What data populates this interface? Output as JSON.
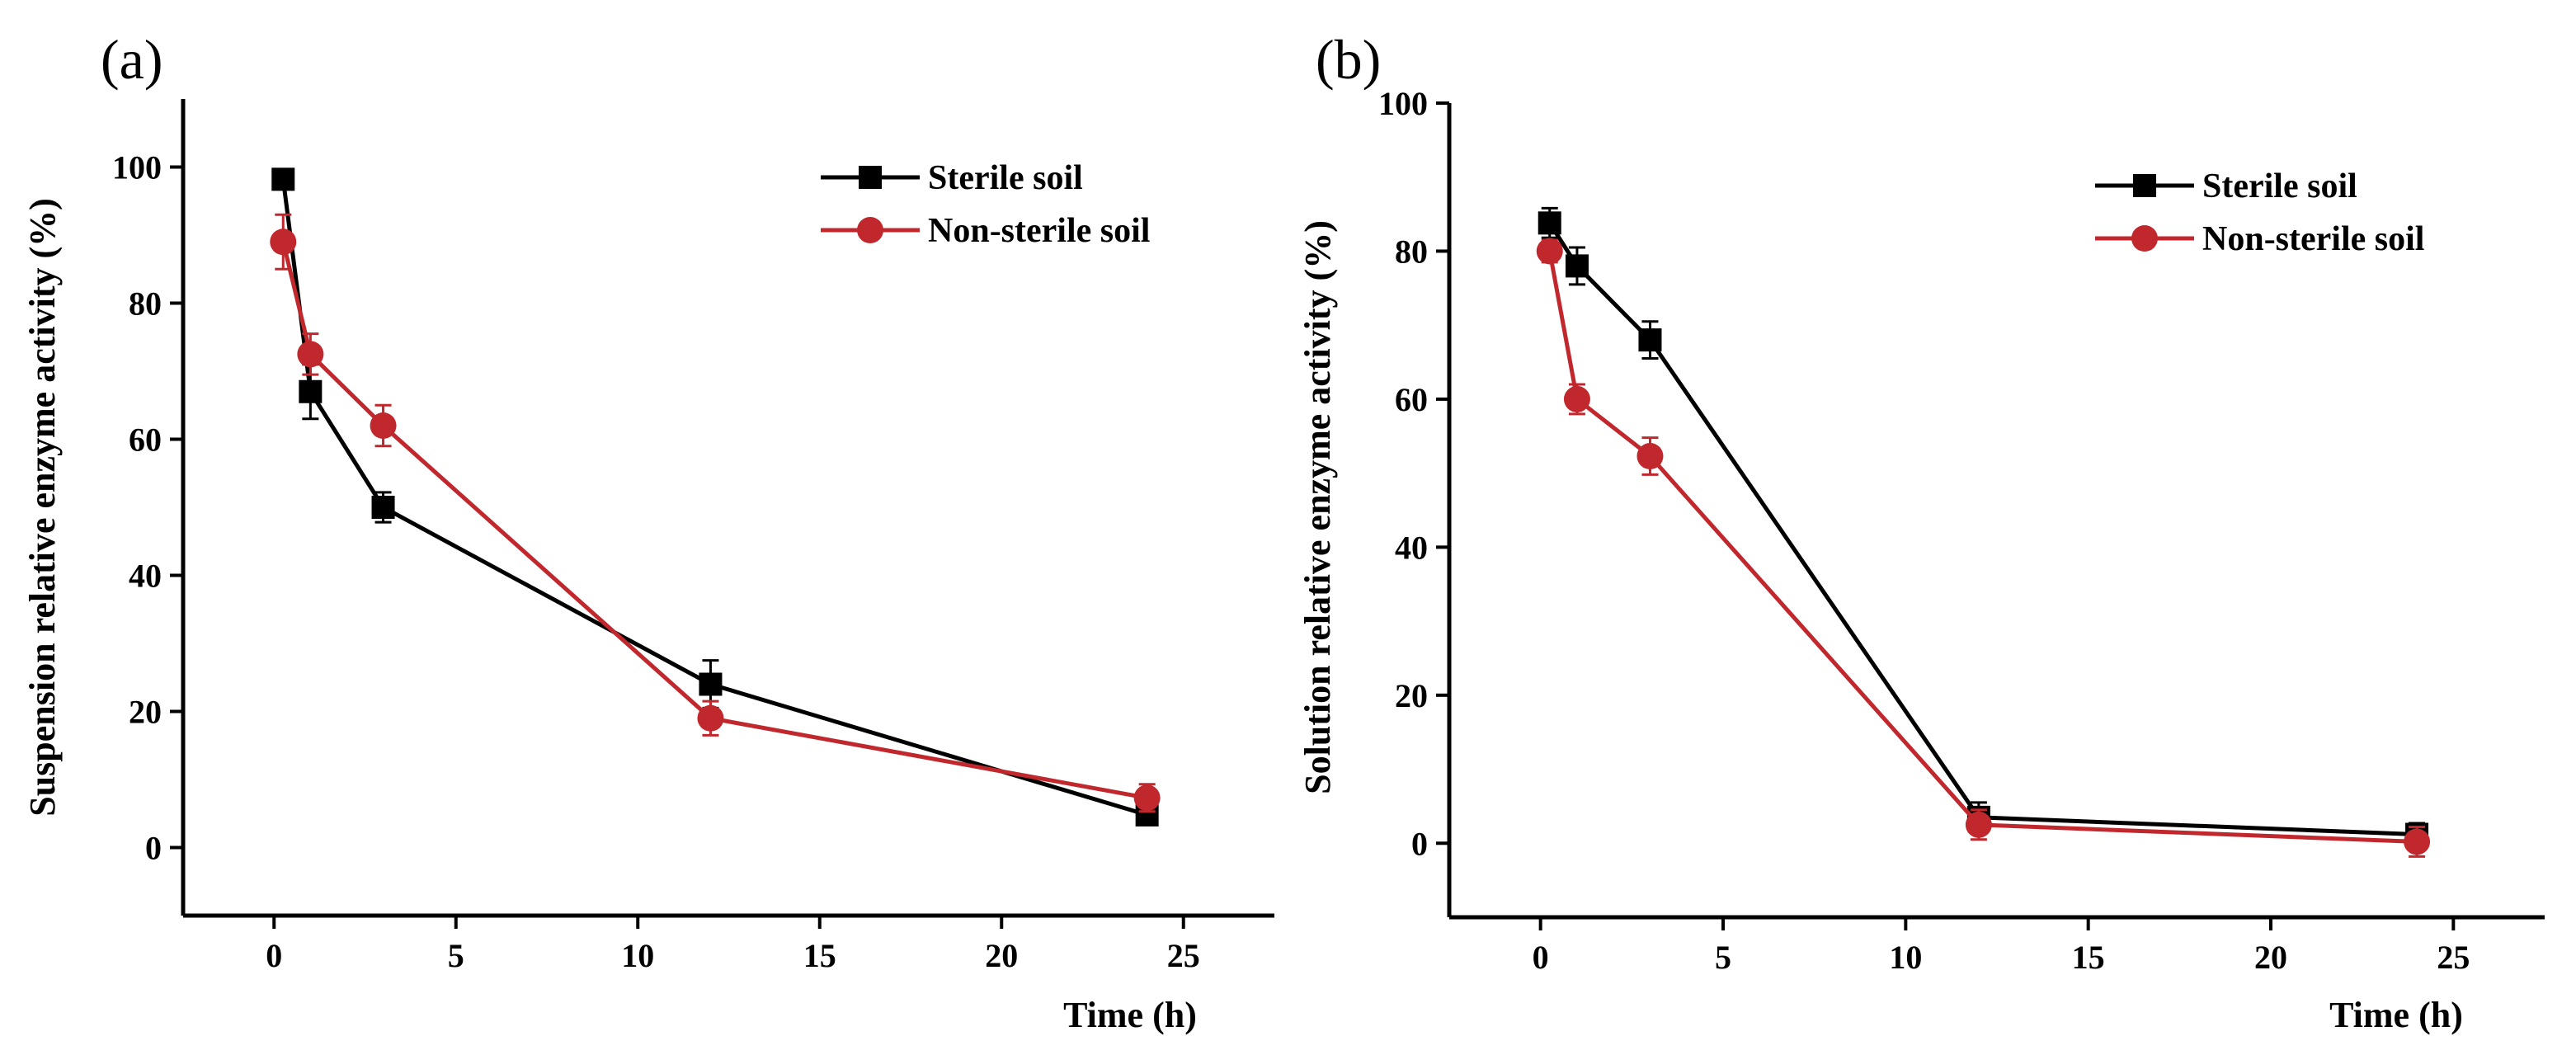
{
  "chart_data": [
    {
      "type": "line",
      "panel_label": "(a)",
      "xlabel": "Time (h)",
      "ylabel": "Suspension relative enzyme activity (%)",
      "xlim": [
        -2.5,
        27.5
      ],
      "ylim": [
        -10,
        110
      ],
      "xticks": [
        0,
        5,
        10,
        15,
        20,
        25
      ],
      "yticks": [
        0,
        20,
        40,
        60,
        80,
        100
      ],
      "legend_position": "top-right",
      "series": [
        {
          "name": "Sterile soil",
          "color": "#000000",
          "marker": "square",
          "x": [
            0.25,
            1,
            3,
            12,
            24
          ],
          "y": [
            98.2,
            67.0,
            50.0,
            24.0,
            4.8
          ],
          "err": [
            1.2,
            4.0,
            2.2,
            3.5,
            1.0
          ]
        },
        {
          "name": "Non-sterile soil",
          "color": "#c0282d",
          "marker": "circle",
          "x": [
            0.25,
            1,
            3,
            12,
            24
          ],
          "y": [
            89.0,
            72.5,
            62.0,
            19.0,
            7.3
          ],
          "err": [
            4.0,
            3.0,
            3.0,
            2.5,
            2.0
          ]
        }
      ]
    },
    {
      "type": "line",
      "panel_label": "(b)",
      "xlabel": "Time (h)",
      "ylabel": "Solution relative enzyme activity (%)",
      "xlim": [
        -2.5,
        27.5
      ],
      "ylim": [
        -10,
        100
      ],
      "xticks": [
        0,
        5,
        10,
        15,
        20,
        25
      ],
      "yticks": [
        0,
        20,
        40,
        60,
        80,
        100
      ],
      "legend_position": "top-right",
      "series": [
        {
          "name": "Sterile soil",
          "color": "#000000",
          "marker": "square",
          "x": [
            0.25,
            1,
            3,
            12,
            24
          ],
          "y": [
            83.8,
            78.0,
            68.0,
            3.5,
            1.2
          ],
          "err": [
            2.0,
            2.5,
            2.5,
            2.0,
            1.5
          ]
        },
        {
          "name": "Non-sterile soil",
          "color": "#c0282d",
          "marker": "circle",
          "x": [
            0.25,
            1,
            3,
            12,
            24
          ],
          "y": [
            80.0,
            60.0,
            52.3,
            2.5,
            0.2
          ],
          "err": [
            1.5,
            2.0,
            2.5,
            2.0,
            2.0
          ]
        }
      ]
    }
  ]
}
